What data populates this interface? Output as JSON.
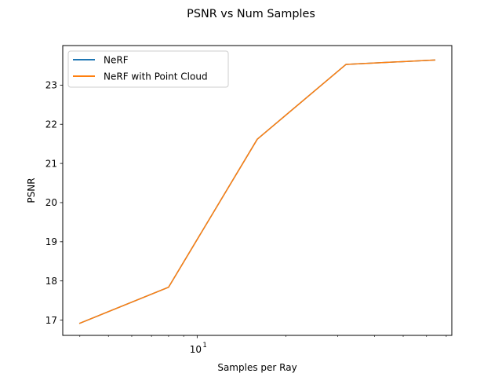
{
  "chart_data": {
    "type": "line",
    "title": "PSNR vs Num Samples",
    "xlabel": "Samples per Ray",
    "ylabel": "PSNR",
    "xscale": "log",
    "xlim": [
      3.5,
      73.1
    ],
    "ylim": [
      16.61,
      24.01
    ],
    "x": [
      4,
      8,
      16,
      32,
      64
    ],
    "series": [
      {
        "name": "NeRF",
        "color": "#1f77b4",
        "values": [
          16.92,
          17.84,
          21.62,
          23.53,
          23.64
        ]
      },
      {
        "name": "NeRF with Point Cloud",
        "color": "#ff7f0e",
        "values": [
          16.92,
          17.84,
          21.62,
          23.53,
          23.64
        ]
      }
    ],
    "yticks": [
      17,
      18,
      19,
      20,
      21,
      22,
      23
    ],
    "xtick_major": {
      "value": 10,
      "base": "10",
      "exp": "1"
    },
    "xtick_minor": [
      4,
      5,
      6,
      7,
      8,
      9,
      20,
      30,
      40,
      50,
      60,
      70
    ],
    "legend": "upper-left",
    "grid": false
  }
}
